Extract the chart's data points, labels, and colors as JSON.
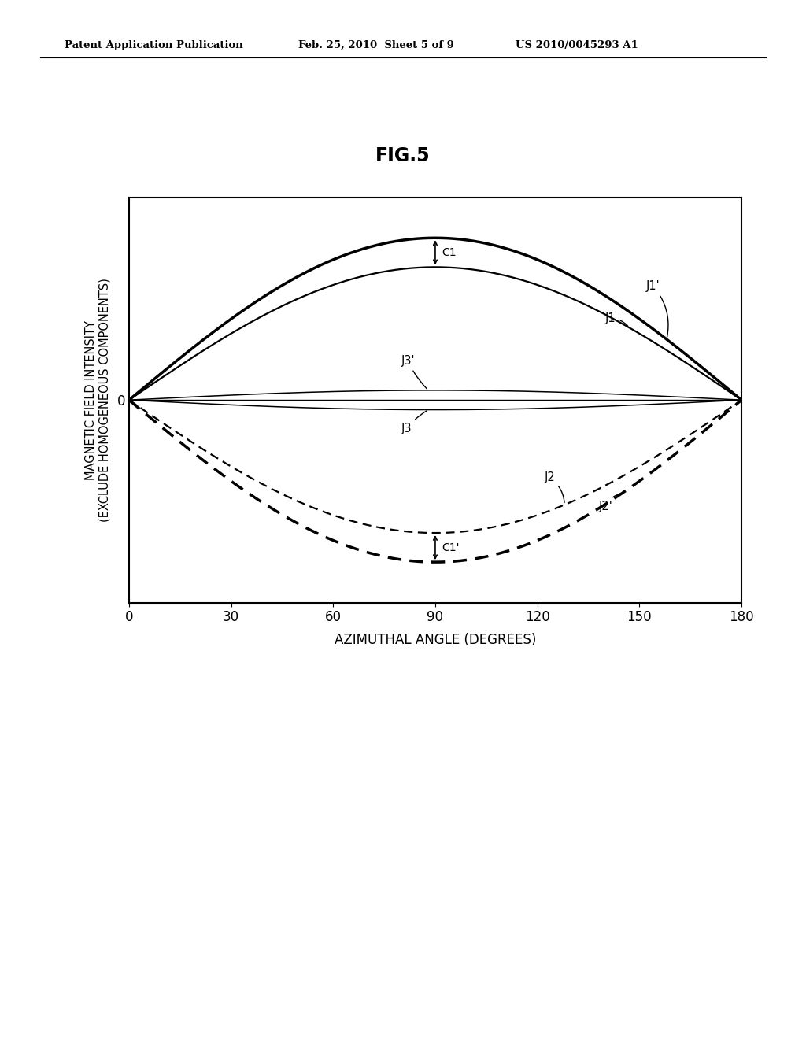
{
  "title": "FIG.5",
  "xlabel": "AZIMUTHAL ANGLE (DEGREES)",
  "ylabel": "MAGNETIC FIELD INTENSITY\n(EXCLUDE HOMOGENEOUS COMPONENTS)",
  "header_left": "Patent Application Publication",
  "header_center": "Feb. 25, 2010  Sheet 5 of 9",
  "header_right": "US 2010/0045293 A1",
  "x_ticks": [
    0,
    30,
    60,
    90,
    120,
    150,
    180
  ],
  "x_min": 0,
  "x_max": 180,
  "y_min": -1.25,
  "y_max": 1.25,
  "curve_J1_prime_amplitude": 1.0,
  "curve_J1_amplitude": 0.82,
  "curve_J3_prime_amplitude": 0.06,
  "curve_J3_amplitude": -0.06,
  "curve_J2_amplitude": -0.82,
  "curve_J2_prime_amplitude": -1.0,
  "background_color": "#ffffff",
  "line_color": "#000000",
  "C1_label": "C1",
  "C1prime_label": "C1'",
  "J1_prime_label": "J1'",
  "J1_label": "J1",
  "J2_label": "J2",
  "J2_prime_label": "J2'",
  "J3_label": "J3",
  "J3_prime_label": "J3'"
}
